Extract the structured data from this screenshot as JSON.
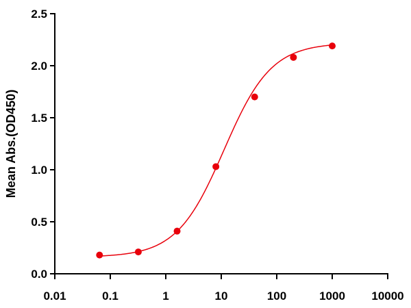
{
  "chart_data": {
    "type": "scatter",
    "title": "",
    "xlabel": "",
    "ylabel": "Mean Abs.(OD450)",
    "xscale": "log",
    "xlim": [
      0.01,
      10000
    ],
    "ylim": [
      0,
      2.5
    ],
    "xticks": [
      0.01,
      0.1,
      1,
      10,
      100,
      1000,
      10000
    ],
    "xtick_labels": [
      "0.01",
      "0.1",
      "1",
      "10",
      "100",
      "1000",
      "10000"
    ],
    "yticks": [
      0,
      0.5,
      1,
      1.5,
      2,
      2.5
    ],
    "ytick_labels": [
      "0.0",
      "0.5",
      "1.0",
      "1.5",
      "2.0",
      "2.5"
    ],
    "grid": false,
    "legend": "none",
    "series": [
      {
        "color": "#e8000b",
        "marker": "circle",
        "fit": "sigmoidal 4PL",
        "x": [
          0.064,
          0.32,
          1.6,
          8,
          40,
          200,
          1000
        ],
        "y": [
          0.18,
          0.21,
          0.41,
          1.03,
          1.7,
          2.08,
          2.19
        ]
      }
    ],
    "fit_params": {
      "bottom": 0.16,
      "top": 2.22,
      "ec50": 11.2,
      "hill": 1.02
    }
  }
}
